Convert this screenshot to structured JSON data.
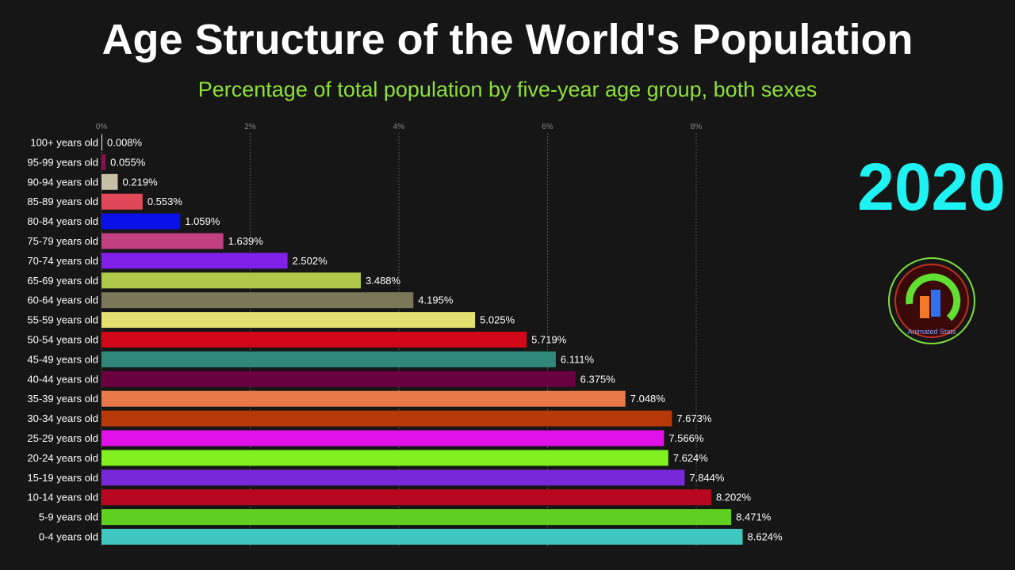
{
  "chart_data": {
    "type": "bar",
    "orientation": "horizontal",
    "title": "Age Structure of the World's Population",
    "subtitle": "Percentage of total population by five-year age group, both sexes",
    "year": "2020",
    "xlim": [
      0,
      8.64
    ],
    "xticks": [
      0,
      2,
      4,
      6,
      8
    ],
    "xtick_labels": [
      "0%",
      "2%",
      "4%",
      "6%",
      "8%"
    ],
    "grid": true,
    "categories": [
      "100+ years old",
      "95-99 years old",
      "90-94 years old",
      "85-89 years old",
      "80-84 years old",
      "75-79 years old",
      "70-74 years old",
      "65-69 years old",
      "60-64 years old",
      "55-59 years old",
      "50-54 years old",
      "45-49 years old",
      "40-44 years old",
      "35-39 years old",
      "30-34 years old",
      "25-29 years old",
      "20-24 years old",
      "15-19 years old",
      "10-14 years old",
      "5-9 years old",
      "0-4 years old"
    ],
    "values": [
      0.008,
      0.055,
      0.219,
      0.553,
      1.059,
      1.639,
      2.502,
      3.488,
      4.195,
      5.025,
      5.719,
      6.111,
      6.375,
      7.048,
      7.673,
      7.566,
      7.624,
      7.844,
      8.202,
      8.471,
      8.624
    ],
    "value_labels": [
      "0.008%",
      "0.055%",
      "0.219%",
      "0.553%",
      "1.059%",
      "1.639%",
      "2.502%",
      "3.488%",
      "4.195%",
      "5.025%",
      "5.719%",
      "6.111%",
      "6.375%",
      "7.048%",
      "7.673%",
      "7.566%",
      "7.624%",
      "7.844%",
      "8.202%",
      "8.471%",
      "8.624%"
    ],
    "colors": [
      "#e8e8e8",
      "#8a1050",
      "#c8c0a8",
      "#e04858",
      "#0a10e8",
      "#c04080",
      "#8020e8",
      "#b0c848",
      "#7a7858",
      "#e4e070",
      "#d00818",
      "#30887a",
      "#6a0040",
      "#e87848",
      "#b83808",
      "#e010e8",
      "#80f020",
      "#7828d8",
      "#b80820",
      "#60d020",
      "#40c8c0"
    ]
  },
  "logo_text": "Animated Stats"
}
